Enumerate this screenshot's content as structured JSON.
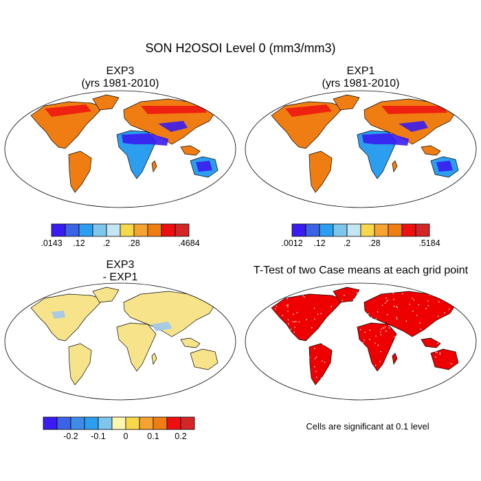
{
  "title": "SON H2OSOI Level 0 (mm3/mm3)",
  "panels": [
    {
      "id": "exp3",
      "title_lines": [
        "EXP3",
        "(yrs 1981-2010)"
      ]
    },
    {
      "id": "exp1",
      "title_lines": [
        "EXP1",
        "(yrs 1981-2010)"
      ]
    },
    {
      "id": "diff",
      "title_lines": [
        "EXP3",
        " - EXP1"
      ]
    },
    {
      "id": "ttest",
      "title_lines": [
        "T-Test of two Case means at each grid point"
      ]
    }
  ],
  "colorbars": {
    "exp3": {
      "colors": [
        "#3a1cf0",
        "#3a63e6",
        "#2c9ef0",
        "#7ec6ec",
        "#c4e6f4",
        "#f7d84a",
        "#f5a32e",
        "#f07d12",
        "#ee1010",
        "#d42626"
      ],
      "labels": [
        ".0143",
        ".12",
        ".2",
        ".28",
        ".4684"
      ],
      "label_boundaries": [
        0,
        2,
        4,
        6,
        10
      ]
    },
    "exp1": {
      "colors": [
        "#3a1cf0",
        "#3a63e6",
        "#2c9ef0",
        "#7ec6ec",
        "#c4e6f4",
        "#f7d84a",
        "#f5a32e",
        "#f07d12",
        "#ee1010",
        "#d42626"
      ],
      "labels": [
        ".0012",
        ".12",
        ".2",
        ".28",
        ".5184"
      ],
      "label_boundaries": [
        0,
        2,
        4,
        6,
        10
      ]
    },
    "diff": {
      "colors": [
        "#3a1cf0",
        "#3a63e6",
        "#3f8be8",
        "#2c9ef0",
        "#7ec6ec",
        "#fdf6b0",
        "#f7d84a",
        "#f5a32e",
        "#f07d12",
        "#ee1010",
        "#d42626"
      ],
      "labels": [
        "-0.2",
        "-0.1",
        "0",
        "0.1",
        "0.2"
      ],
      "label_boundaries": [
        2,
        4,
        6,
        8,
        10
      ]
    }
  },
  "note": "Cells are significant at 0.1 level",
  "map_colors": {
    "wet": "#f07d12",
    "very_wet": "#ee1010",
    "dry": "#3a1cf0",
    "medium_dry": "#2c9ef0",
    "diff_base": "#f7e48a",
    "diff_blue": "#9ec8ec",
    "ttest": "#ee0000"
  }
}
